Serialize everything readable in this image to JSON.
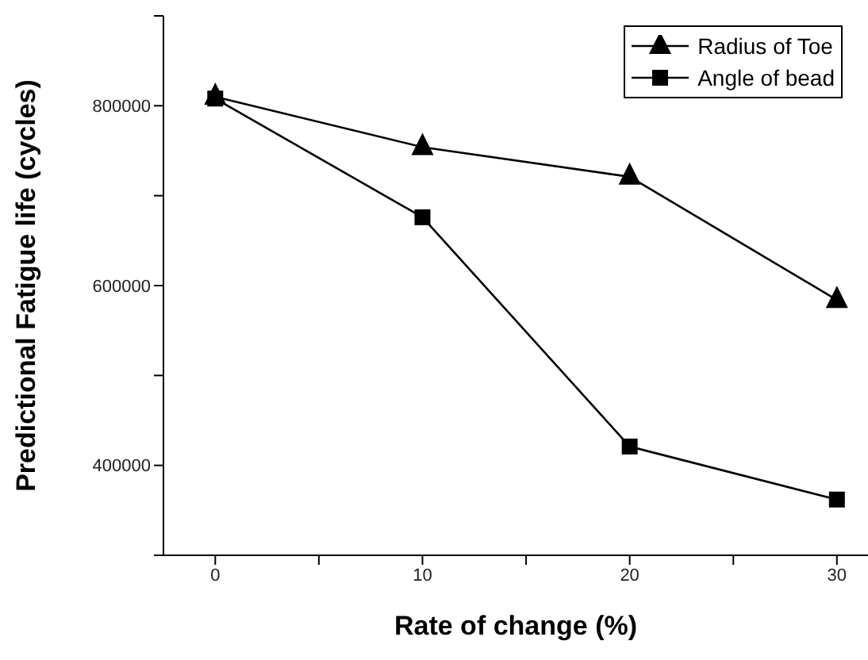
{
  "chart_data": {
    "type": "line",
    "xlabel": "Rate of change (%)",
    "ylabel": "Predictional Fatigue life (cycles)",
    "x": [
      0,
      10,
      20,
      30
    ],
    "series": [
      {
        "name": "Radius of Toe",
        "color": "#000000",
        "marker": "triangle",
        "values": [
          810000,
          754000,
          721000,
          584000
        ]
      },
      {
        "name": "Angle of bead",
        "color": "#000000",
        "marker": "square",
        "values": [
          808000,
          676000,
          421000,
          362000
        ]
      }
    ],
    "xlim": [
      -2.5,
      31.5
    ],
    "xticks": [
      0,
      {
        "value": 5,
        "label": null
      },
      10,
      {
        "value": 15,
        "label": null
      },
      20,
      {
        "value": 25,
        "label": null
      },
      30
    ],
    "ylim": [
      300000,
      900000
    ],
    "yticks": [
      {
        "value": 300000,
        "label": null
      },
      400000,
      {
        "value": 500000,
        "label": null
      },
      600000,
      {
        "value": 700000,
        "label": null
      },
      800000,
      {
        "value": 900000,
        "label": null
      }
    ],
    "grid": false,
    "legend": "top right",
    "line_style": "solid"
  }
}
